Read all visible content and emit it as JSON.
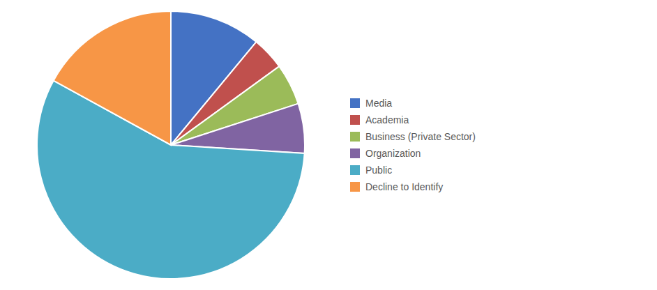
{
  "chart_data": {
    "type": "pie",
    "categories": [
      "Media",
      "Academia",
      "Business (Private Sector)",
      "Organization",
      "Public",
      "Decline to Identify"
    ],
    "values": [
      11,
      4,
      5,
      6,
      57,
      17
    ],
    "colors": [
      "#4472C4",
      "#C0504D",
      "#9BBB59",
      "#8064A2",
      "#4BACC6",
      "#F79646"
    ],
    "legend": "right"
  }
}
